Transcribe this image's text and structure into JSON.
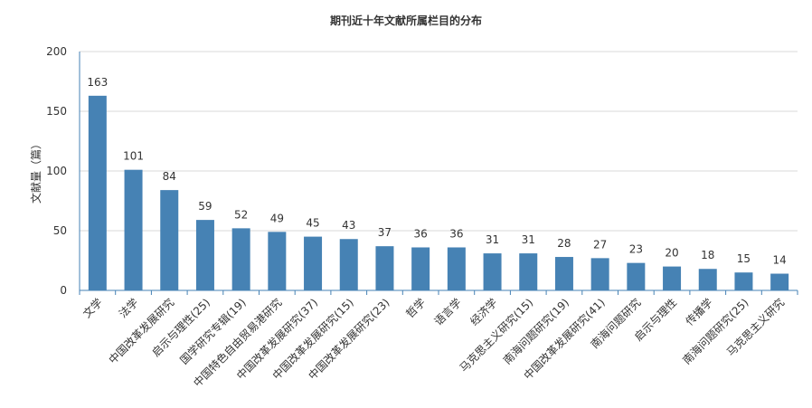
{
  "chart_data": {
    "type": "bar",
    "title": "期刊近十年文献所属栏目的分布",
    "xlabel": "",
    "ylabel": "文献量（篇）",
    "ylim": [
      0,
      200
    ],
    "yticks": [
      0,
      50,
      100,
      150,
      200
    ],
    "grid": true,
    "categories": [
      "文学",
      "法学",
      "中国改革发展研究",
      "启示与理性(25)",
      "国学研究专辑(19)",
      "中国特色自由贸易港研究",
      "中国改革发展研究(37)",
      "中国改革发展研究(15)",
      "中国改革发展研究(23)",
      "哲学",
      "语言学",
      "经济学",
      "马克思主义研究(15)",
      "南海问题研究(19)",
      "中国改革发展研究(41)",
      "南海问题研究",
      "启示与理性",
      "传播学",
      "南海问题研究(25)",
      "马克思主义研究"
    ],
    "values": [
      163,
      101,
      84,
      59,
      52,
      49,
      45,
      43,
      37,
      36,
      36,
      31,
      31,
      28,
      27,
      23,
      20,
      18,
      15,
      14
    ],
    "bar_color": "#4682b4"
  }
}
